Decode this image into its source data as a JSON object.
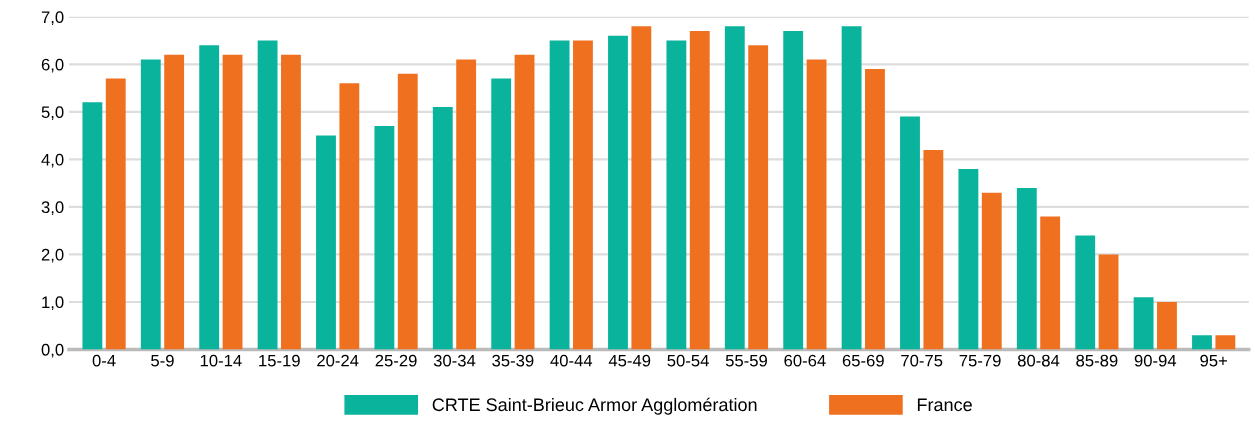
{
  "chart_data": {
    "type": "bar",
    "categories": [
      "0-4",
      "5-9",
      "10-14",
      "15-19",
      "20-24",
      "25-29",
      "30-34",
      "35-39",
      "40-44",
      "45-49",
      "50-54",
      "55-59",
      "60-64",
      "65-69",
      "70-75",
      "75-79",
      "80-84",
      "85-89",
      "90-94",
      "95+"
    ],
    "series": [
      {
        "name": "CRTE Saint-Brieuc Armor Agglomération",
        "color": "#0ab39c",
        "values": [
          5.2,
          6.1,
          6.4,
          6.5,
          4.5,
          4.7,
          5.1,
          5.7,
          6.5,
          6.6,
          6.5,
          6.8,
          6.7,
          6.8,
          4.9,
          3.8,
          3.4,
          2.4,
          1.1,
          0.3
        ]
      },
      {
        "name": "France",
        "color": "#ef7120",
        "values": [
          5.7,
          6.2,
          6.2,
          6.2,
          5.6,
          5.8,
          6.1,
          6.2,
          6.5,
          6.8,
          6.7,
          6.4,
          6.1,
          5.9,
          4.2,
          3.3,
          2.8,
          2.0,
          1.0,
          0.3
        ]
      }
    ],
    "ylim": [
      0,
      7
    ],
    "yticks": [
      {
        "value": 0,
        "label": "0,0"
      },
      {
        "value": 1,
        "label": "1,0"
      },
      {
        "value": 2,
        "label": "2,0"
      },
      {
        "value": 3,
        "label": "3,0"
      },
      {
        "value": 4,
        "label": "4,0"
      },
      {
        "value": 5,
        "label": "5,0"
      },
      {
        "value": 6,
        "label": "6,0"
      },
      {
        "value": 7,
        "label": "7,0"
      }
    ],
    "grid": "y",
    "legend": "bottom"
  }
}
